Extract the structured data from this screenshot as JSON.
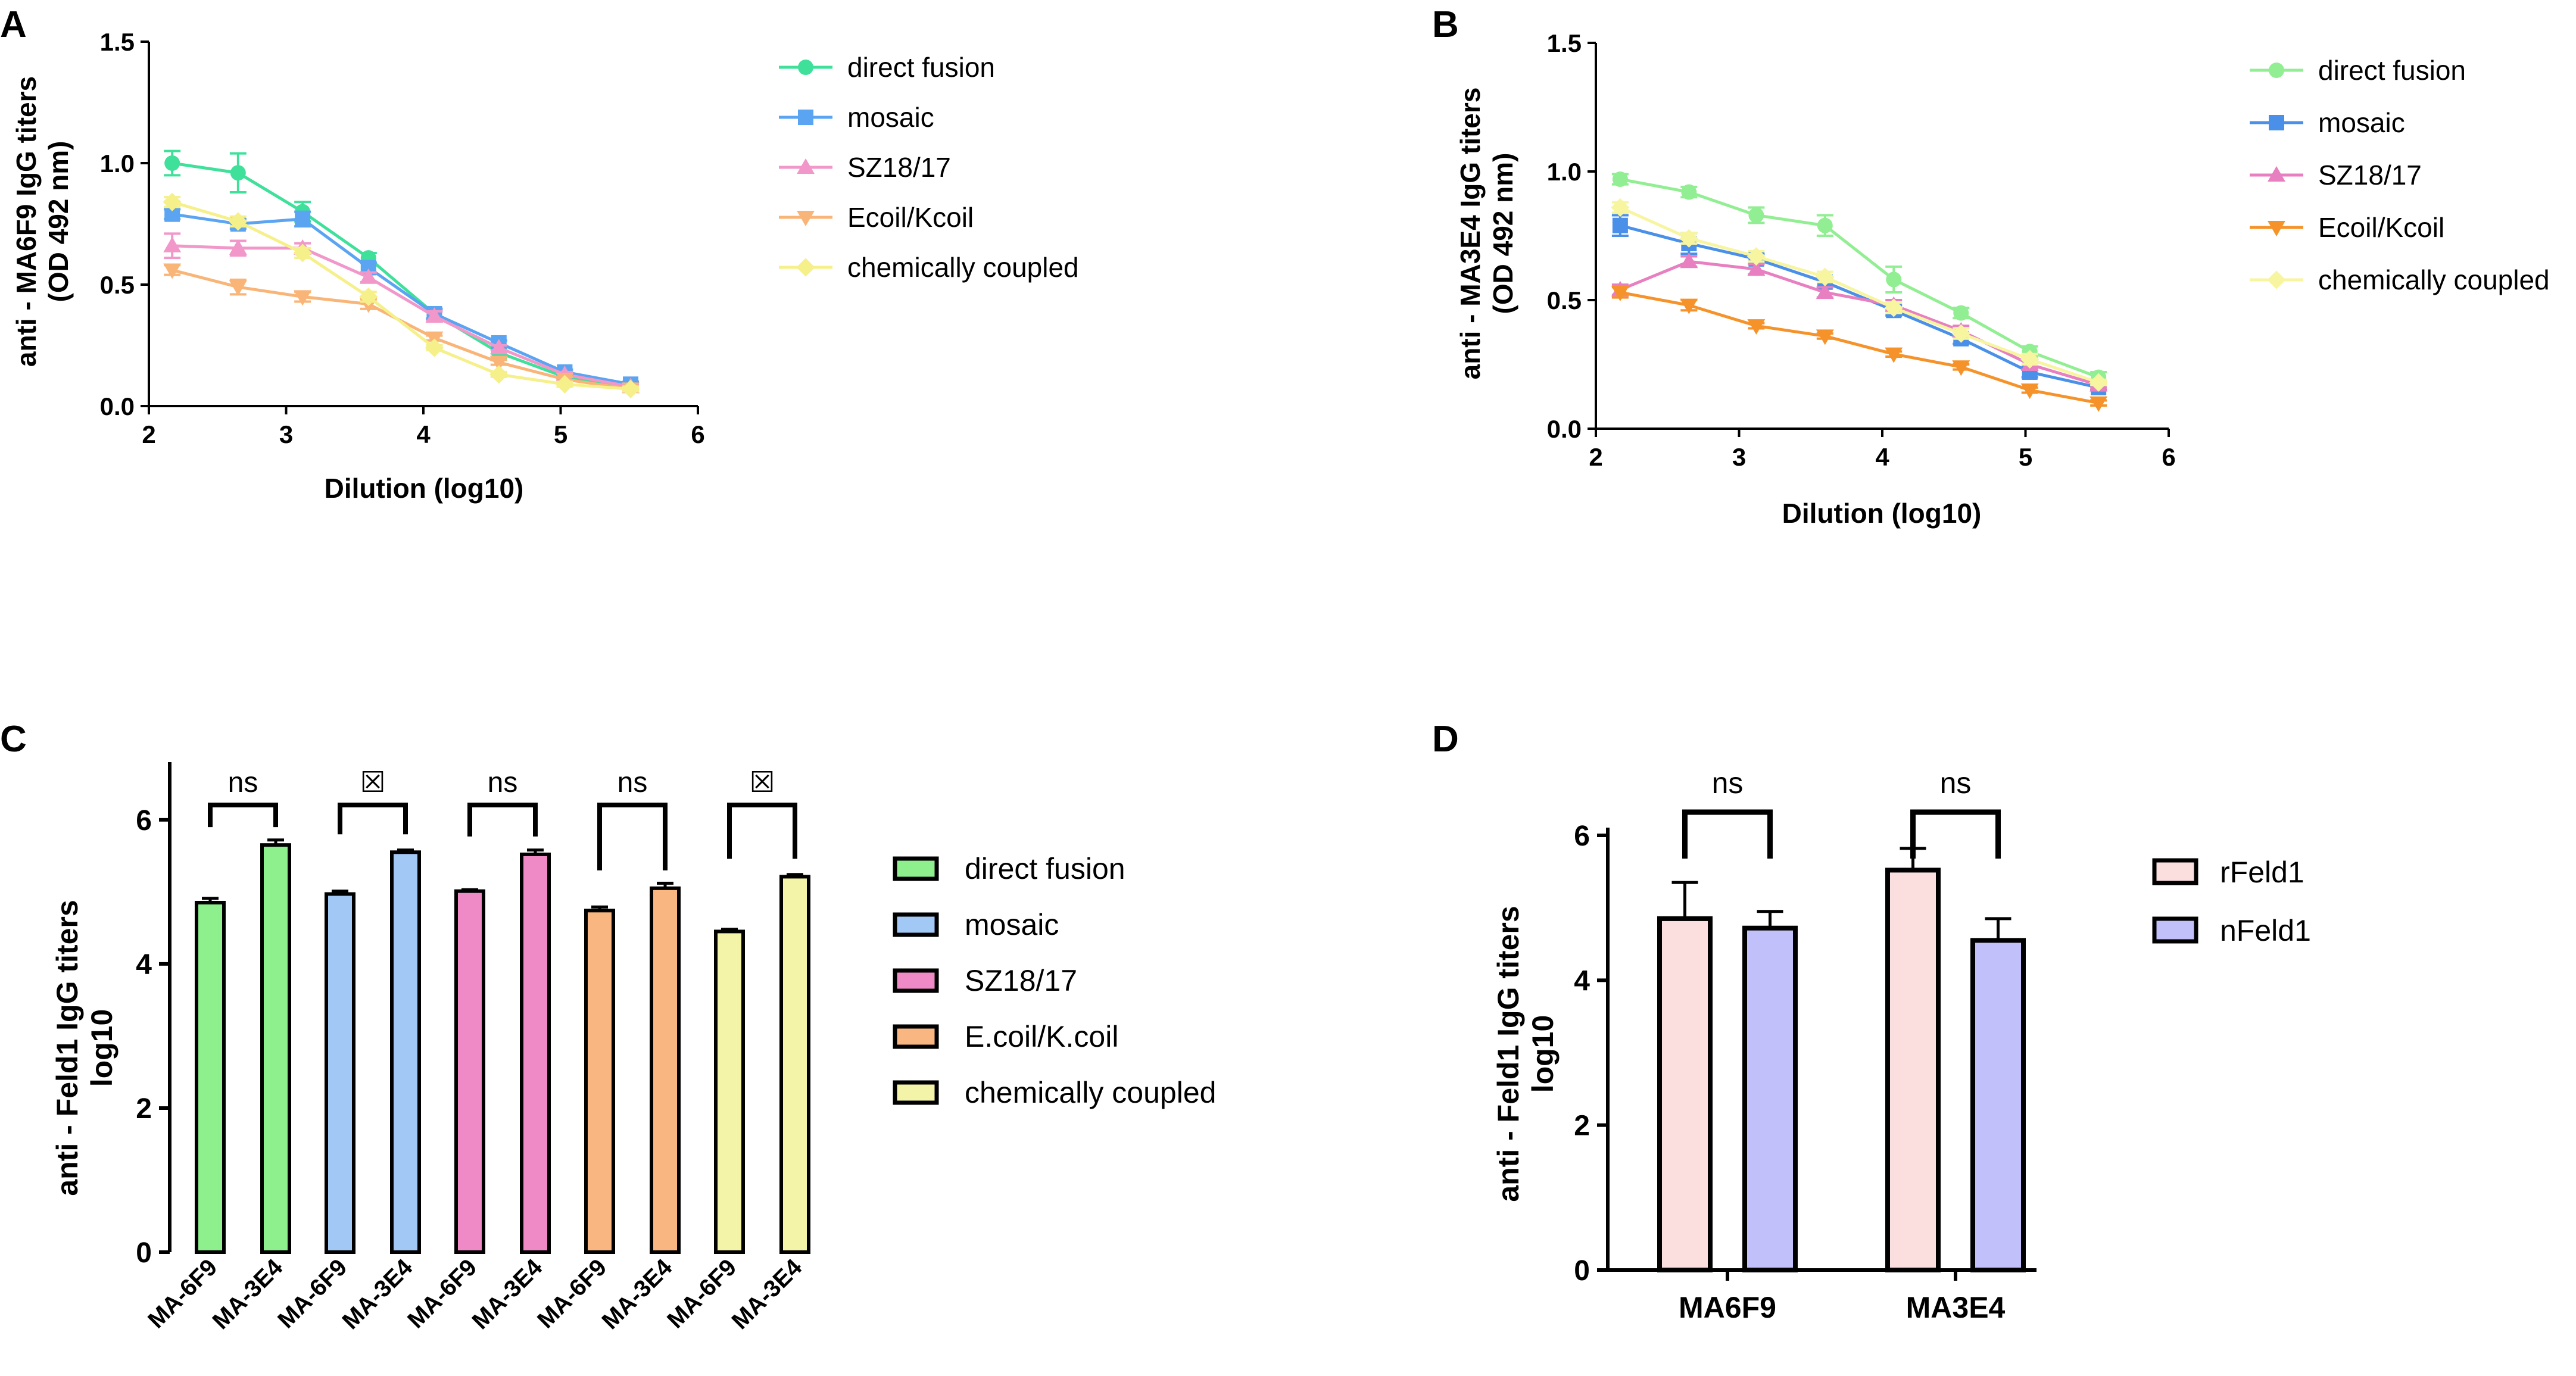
{
  "chart_data": [
    {
      "panel_label": "A",
      "type": "line",
      "title": "",
      "ylabel_lines": [
        "anti - MA6F9 IgG titers",
        "(OD 492 nm)"
      ],
      "xlabel": "Dilution (log10)",
      "xlim": [
        2,
        6
      ],
      "ylim": [
        0,
        1.5
      ],
      "xticks": [
        2,
        3,
        4,
        5,
        6
      ],
      "yticks": [
        0,
        0.5,
        1.0,
        1.5
      ],
      "ytick_labels": [
        "0.0",
        "0.5",
        "1.0",
        "1.5"
      ],
      "x": [
        2.17,
        2.65,
        3.12,
        3.6,
        4.08,
        4.55,
        5.03,
        5.51
      ],
      "series": [
        {
          "name": "direct fusion",
          "color": "#3fe09a",
          "marker": "circle",
          "values": [
            1.0,
            0.96,
            0.8,
            0.61,
            0.38,
            0.22,
            0.12,
            0.08
          ],
          "errors": [
            0.05,
            0.08,
            0.04,
            0.02,
            0.02,
            0.02,
            0.01,
            0.01
          ]
        },
        {
          "name": "mosaic",
          "color": "#5aa4f2",
          "marker": "square",
          "values": [
            0.79,
            0.75,
            0.77,
            0.57,
            0.38,
            0.26,
            0.14,
            0.09
          ],
          "errors": [
            0.02,
            0.02,
            0.03,
            0.02,
            0.02,
            0.01,
            0.01,
            0.01
          ]
        },
        {
          "name": "SZ18/17",
          "color": "#f197c9",
          "marker": "triangle-up",
          "values": [
            0.66,
            0.65,
            0.65,
            0.53,
            0.37,
            0.24,
            0.13,
            0.08
          ],
          "errors": [
            0.05,
            0.03,
            0.02,
            0.02,
            0.02,
            0.01,
            0.01,
            0.01
          ]
        },
        {
          "name": "Ecoil/Kcoil",
          "color": "#f9b477",
          "marker": "triangle-down",
          "values": [
            0.56,
            0.49,
            0.45,
            0.42,
            0.28,
            0.18,
            0.11,
            0.07
          ],
          "errors": [
            0.02,
            0.03,
            0.02,
            0.02,
            0.01,
            0.01,
            0.01,
            0.01
          ]
        },
        {
          "name": "chemically coupled",
          "color": "#f5f08a",
          "marker": "diamond",
          "values": [
            0.84,
            0.76,
            0.63,
            0.45,
            0.24,
            0.13,
            0.09,
            0.07
          ],
          "errors": [
            0.02,
            0.02,
            0.02,
            0.02,
            0.01,
            0.01,
            0.01,
            0.01
          ]
        }
      ]
    },
    {
      "panel_label": "B",
      "type": "line",
      "title": "",
      "ylabel_lines": [
        "anti - MA3E4 IgG titers",
        "(OD 492 nm)"
      ],
      "xlabel": "Dilution (log10)",
      "xlim": [
        2,
        6
      ],
      "ylim": [
        0,
        1.5
      ],
      "xticks": [
        2,
        3,
        4,
        5,
        6
      ],
      "yticks": [
        0,
        0.5,
        1.0,
        1.5
      ],
      "ytick_labels": [
        "0.0",
        "0.5",
        "1.0",
        "1.5"
      ],
      "x": [
        2.17,
        2.65,
        3.12,
        3.6,
        4.08,
        4.55,
        5.03,
        5.51
      ],
      "series": [
        {
          "name": "direct fusion",
          "color": "#92ee92",
          "marker": "circle",
          "values": [
            0.97,
            0.92,
            0.83,
            0.79,
            0.58,
            0.45,
            0.3,
            0.2
          ],
          "errors": [
            0.02,
            0.02,
            0.03,
            0.04,
            0.05,
            0.02,
            0.02,
            0.02
          ]
        },
        {
          "name": "mosaic",
          "color": "#4a90e8",
          "marker": "square",
          "values": [
            0.79,
            0.72,
            0.66,
            0.57,
            0.46,
            0.35,
            0.22,
            0.16
          ],
          "errors": [
            0.04,
            0.04,
            0.02,
            0.02,
            0.02,
            0.02,
            0.02,
            0.01
          ]
        },
        {
          "name": "SZ18/17",
          "color": "#e77fc0",
          "marker": "triangle-up",
          "values": [
            0.54,
            0.65,
            0.62,
            0.53,
            0.48,
            0.38,
            0.25,
            0.17
          ],
          "errors": [
            0.02,
            0.02,
            0.02,
            0.02,
            0.02,
            0.02,
            0.02,
            0.01
          ]
        },
        {
          "name": "Ecoil/Kcoil",
          "color": "#f5932a",
          "marker": "triangle-down",
          "values": [
            0.53,
            0.48,
            0.4,
            0.36,
            0.29,
            0.24,
            0.15,
            0.1
          ],
          "errors": [
            0.02,
            0.02,
            0.01,
            0.01,
            0.01,
            0.01,
            0.01,
            0.01
          ]
        },
        {
          "name": "chemically coupled",
          "color": "#f7f5a0",
          "marker": "diamond",
          "values": [
            0.86,
            0.74,
            0.67,
            0.59,
            0.47,
            0.37,
            0.27,
            0.18
          ],
          "errors": [
            0.02,
            0.02,
            0.02,
            0.02,
            0.02,
            0.02,
            0.02,
            0.01
          ]
        }
      ]
    },
    {
      "panel_label": "C",
      "type": "bar",
      "title": "",
      "ylabel_lines": [
        "anti - Feld1 IgG titers",
        "log10"
      ],
      "xlabel": "",
      "ylim": [
        0,
        6.8
      ],
      "yticks": [
        0,
        2,
        4,
        6
      ],
      "ytick_labels": [
        "0",
        "2",
        "4",
        "6"
      ],
      "categories": [
        "MA-6F9",
        "MA-3E4",
        "MA-6F9",
        "MA-3E4",
        "MA-6F9",
        "MA-3E4",
        "MA-6F9",
        "MA-3E4",
        "MA-6F9",
        "MA-3E4"
      ],
      "groups": [
        {
          "name": "direct fusion",
          "color": "#8ef08c",
          "values": [
            4.85,
            5.65
          ],
          "errors": [
            0.06,
            0.07
          ],
          "significance": "ns"
        },
        {
          "name": "mosaic",
          "color": "#a2c8f6",
          "values": [
            4.97,
            5.55
          ],
          "errors": [
            0.04,
            0.03
          ],
          "significance": "☒"
        },
        {
          "name": "SZ18/17",
          "color": "#f08ac6",
          "values": [
            5.01,
            5.52
          ],
          "errors": [
            0.02,
            0.06
          ],
          "significance": "ns"
        },
        {
          "name": "E.coil/K.coil",
          "color": "#f9b680",
          "values": [
            4.74,
            5.05
          ],
          "errors": [
            0.05,
            0.07
          ],
          "significance": "ns"
        },
        {
          "name": "chemically coupled",
          "color": "#f4f4a8",
          "values": [
            4.45,
            5.21
          ],
          "errors": [
            0.03,
            0.03
          ],
          "significance": "☒"
        }
      ],
      "legend": [
        "direct fusion",
        "mosaic",
        "SZ18/17",
        "E.coil/K.coil",
        "chemically coupled"
      ]
    },
    {
      "panel_label": "D",
      "type": "bar",
      "title": "",
      "ylabel_lines": [
        "anti - Feld1 IgG titers",
        "log10"
      ],
      "xlabel": "",
      "ylim": [
        0,
        6.6
      ],
      "yticks": [
        0,
        2,
        4,
        6
      ],
      "ytick_labels": [
        "0",
        "2",
        "4",
        "6"
      ],
      "categories": [
        "MA6F9",
        "MA3E4"
      ],
      "series": [
        {
          "name": "rFeld1",
          "color": "#fbdede",
          "values": [
            4.85,
            5.52
          ],
          "errors": [
            0.5,
            0.3
          ]
        },
        {
          "name": "nFeld1",
          "color": "#c2c0fa",
          "values": [
            4.72,
            4.55
          ],
          "errors": [
            0.23,
            0.3
          ]
        }
      ],
      "significance": [
        "ns",
        "ns"
      ]
    }
  ]
}
